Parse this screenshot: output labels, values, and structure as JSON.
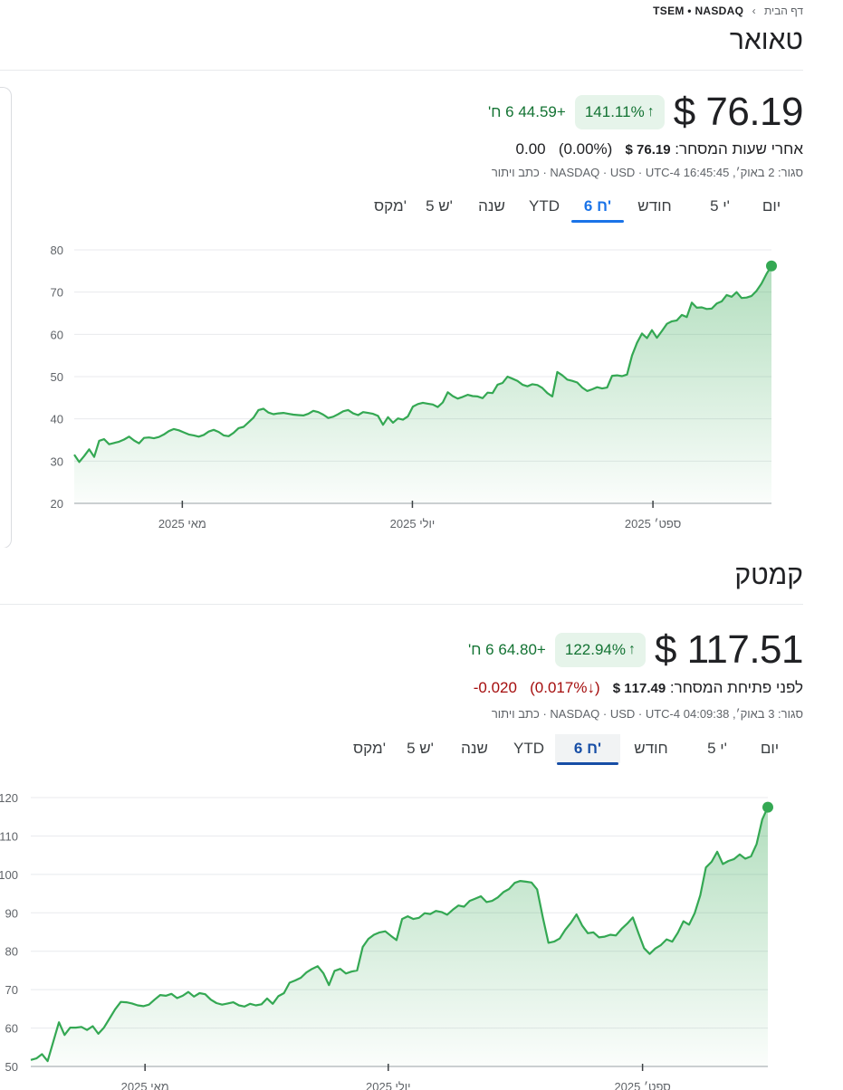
{
  "top": {
    "breadcrumb": {
      "home": "דף הבית",
      "ticker": "TSEM • NASDAQ"
    },
    "title": "טאואר",
    "price": "$ 76.19",
    "pct_change": "141.11%",
    "abs_change": "+44.59 6 ח'",
    "after_label": "אחרי שעות המסחר:",
    "after_price": "$ 76.19",
    "after_pct": "(0.00%)",
    "after_change": "0.00",
    "meta": "סגור: 2 באוק׳, 16:45:45 NASDAQ · USD · UTC-4 · כתב ויתור",
    "tabs": [
      {
        "label": "יום"
      },
      {
        "label": "5 י'"
      },
      {
        "label": "חודש"
      },
      {
        "label": "6 ח'"
      },
      {
        "label": "YTD"
      },
      {
        "label": "שנה"
      },
      {
        "label": "5 ש'"
      },
      {
        "label": "מקס'"
      }
    ],
    "active_tab": 3
  },
  "bottom": {
    "title": "קמטק",
    "price": "$ 117.51",
    "pct_change": "122.94%",
    "abs_change": "+64.80 6 ח'",
    "pre_label": "לפני פתיחת המסחר:",
    "pre_price": "$ 117.49",
    "pre_pct": "(0.017%↓)",
    "pre_change": "-0.020",
    "meta": "סגור: 3 באוק׳, 04:09:38 NASDAQ · USD · UTC-4 · כתב ויתור",
    "tabs": [
      {
        "label": "יום"
      },
      {
        "label": "5 י'"
      },
      {
        "label": "חודש"
      },
      {
        "label": "6 ח'"
      },
      {
        "label": "YTD"
      },
      {
        "label": "שנה"
      },
      {
        "label": "5 ש'"
      },
      {
        "label": "מקס'"
      }
    ],
    "active_tab": 3
  },
  "colors": {
    "up": "#34a853",
    "up_text": "#137333",
    "down": "#a50e0e",
    "active_tab": "#1a73e8"
  },
  "chart_data": [
    {
      "type": "area",
      "ylim": [
        20,
        80
      ],
      "yticks": [
        "20",
        "30",
        "40",
        "50",
        "60",
        "70",
        "80"
      ],
      "xticks": [
        {
          "label": "מאי 2025",
          "t": 0.155
        },
        {
          "label": "יולי 2025",
          "t": 0.485
        },
        {
          "label": "ספט׳ 2025",
          "t": 0.83
        }
      ],
      "values": [
        31.5,
        29.8,
        31.2,
        32.8,
        31.0,
        34.8,
        35.2,
        34.0,
        34.3,
        34.6,
        35.1,
        35.8,
        34.9,
        34.2,
        35.5,
        35.6,
        35.4,
        35.7,
        36.3,
        37.1,
        37.6,
        37.3,
        36.8,
        36.3,
        36.1,
        35.8,
        36.2,
        37.0,
        37.4,
        36.9,
        36.1,
        35.9,
        36.7,
        37.8,
        38.1,
        39.2,
        40.3,
        42.1,
        42.4,
        41.5,
        41.1,
        41.3,
        41.4,
        41.2,
        41.0,
        40.9,
        40.8,
        41.2,
        41.9,
        41.6,
        41.0,
        40.2,
        40.5,
        41.1,
        41.8,
        42.1,
        41.3,
        40.9,
        41.6,
        41.4,
        41.2,
        40.7,
        38.6,
        40.4,
        39.1,
        40.1,
        39.8,
        40.6,
        42.9,
        43.5,
        43.8,
        43.6,
        43.4,
        42.8,
        43.9,
        46.3,
        45.4,
        44.8,
        45.2,
        45.7,
        45.4,
        45.3,
        44.9,
        46.2,
        46.1,
        48.1,
        48.5,
        50.0,
        49.5,
        49.0,
        48.1,
        47.7,
        48.2,
        48.0,
        47.3,
        46.1,
        45.3,
        51.1,
        50.3,
        49.3,
        49.0,
        48.6,
        47.4,
        46.6,
        47.0,
        47.5,
        47.2,
        47.4,
        50.2,
        50.3,
        50.1,
        50.5,
        55.0,
        58.0,
        60.2,
        59.1,
        61.0,
        59.2,
        60.8,
        62.5,
        63.1,
        63.3,
        64.6,
        64.1,
        67.5,
        66.3,
        66.4,
        66.0,
        66.1,
        67.3,
        67.8,
        69.3,
        68.9,
        70.0,
        68.6,
        68.7,
        69.1,
        70.3,
        72.0,
        74.3,
        76.2
      ]
    },
    {
      "type": "area",
      "ylim": [
        50,
        120
      ],
      "yticks": [
        "50",
        "60",
        "70",
        "80",
        "90",
        "100",
        "110",
        "120"
      ],
      "xticks": [
        {
          "label": "מאי 2025",
          "t": 0.155
        },
        {
          "label": "יולי 2025",
          "t": 0.485
        },
        {
          "label": "ספט׳ 2025",
          "t": 0.83
        }
      ],
      "values": [
        51.7,
        52.1,
        53.2,
        51.4,
        56.5,
        61.5,
        58.2,
        60.1,
        60.1,
        60.3,
        59.5,
        60.5,
        58.5,
        60.1,
        62.5,
        64.9,
        66.8,
        66.7,
        66.4,
        65.9,
        65.7,
        66.1,
        67.4,
        68.6,
        68.4,
        68.9,
        67.8,
        68.4,
        69.4,
        68.2,
        69.1,
        68.8,
        67.4,
        66.5,
        66.1,
        66.4,
        66.7,
        65.9,
        65.6,
        66.3,
        65.9,
        66.2,
        67.7,
        66.3,
        68.3,
        69.1,
        71.8,
        72.4,
        73.1,
        74.5,
        75.4,
        76.1,
        74.3,
        71.2,
        74.9,
        75.4,
        74.2,
        74.7,
        75.0,
        81.1,
        83.2,
        84.3,
        84.9,
        85.2,
        84.0,
        82.9,
        88.4,
        89.1,
        88.4,
        88.7,
        89.9,
        89.7,
        90.5,
        90.2,
        89.5,
        90.8,
        91.9,
        91.6,
        93.1,
        93.7,
        94.3,
        92.8,
        93.1,
        94.0,
        95.4,
        96.2,
        97.8,
        98.3,
        98.1,
        97.9,
        96.1,
        88.8,
        82.2,
        82.5,
        83.3,
        85.6,
        87.4,
        89.6,
        86.7,
        84.7,
        84.9,
        83.6,
        83.8,
        84.3,
        84.1,
        85.8,
        87.2,
        88.8,
        84.7,
        80.8,
        79.3,
        80.7,
        81.6,
        83.1,
        82.5,
        84.8,
        87.8,
        86.9,
        89.9,
        94.6,
        101.8,
        103.3,
        105.9,
        102.7,
        103.5,
        104.0,
        105.2,
        104.1,
        104.7,
        107.9,
        114.3,
        117.5
      ]
    }
  ]
}
